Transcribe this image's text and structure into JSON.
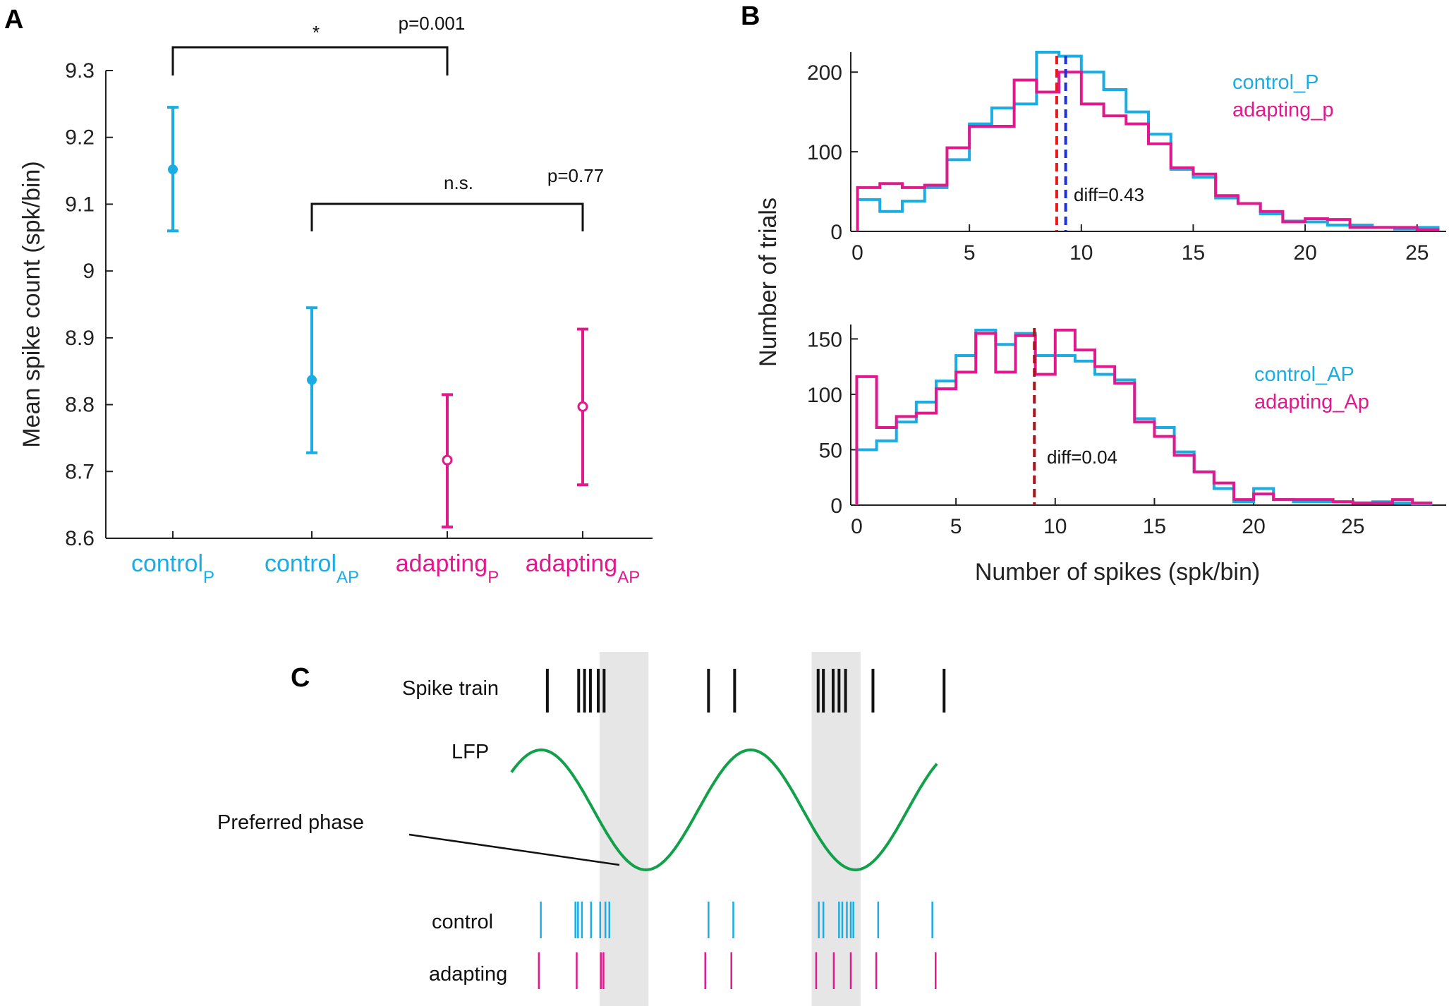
{
  "colors": {
    "control": "#1aace3",
    "adapting": "#e01a8c",
    "lfp": "#12a04a",
    "median_red": "#e41a1c",
    "median_blue": "#1f2fe0",
    "median_darkred": "#a8161c",
    "shade": "#e6e6e6",
    "axis": "#222222"
  },
  "panels": {
    "a": {
      "letter": "A"
    },
    "b": {
      "letter": "B"
    },
    "c": {
      "letter": "C"
    }
  },
  "chart_data": [
    {
      "id": "A",
      "type": "errorbar",
      "ylabel": "Mean spike count (spk/bin)",
      "ylim": [
        8.6,
        9.3
      ],
      "yticks": [
        "8.6",
        "8.7",
        "8.8",
        "8.9",
        "9",
        "9.1",
        "9.2",
        "9.3"
      ],
      "points": [
        {
          "main": "control",
          "sub": "P",
          "group": "control",
          "mean": 9.152,
          "lower": 9.06,
          "upper": 9.245,
          "filled": true
        },
        {
          "main": "control",
          "sub": "AP",
          "group": "control",
          "mean": 8.837,
          "lower": 8.728,
          "upper": 8.945,
          "filled": true
        },
        {
          "main": "adapting",
          "sub": "P",
          "group": "adapting",
          "mean": 8.717,
          "lower": 8.617,
          "upper": 8.815,
          "filled": false
        },
        {
          "main": "adapting",
          "sub": "AP",
          "group": "adapting",
          "mean": 8.797,
          "lower": 8.68,
          "upper": 8.913,
          "filled": false
        }
      ],
      "comparisons": [
        {
          "from": 0,
          "to": 2,
          "star": "*",
          "p": "p=0.001"
        },
        {
          "from": 1,
          "to": 3,
          "star": "n.s.",
          "p": "p=0.77"
        }
      ]
    },
    {
      "id": "B-top",
      "type": "histogram",
      "ylabel": "Number of trials",
      "xlabel": "",
      "xlim": [
        -0.3,
        26.3
      ],
      "ylim": [
        0,
        225
      ],
      "xticks": [
        0,
        5,
        10,
        15,
        20,
        25
      ],
      "yticks": [
        0,
        100,
        200
      ],
      "bin_edges": [
        0,
        1,
        2,
        3,
        4,
        5,
        6,
        7,
        8,
        9,
        10,
        11,
        12,
        13,
        14,
        15,
        16,
        17,
        18,
        19,
        20,
        21,
        22,
        23,
        24,
        25,
        26
      ],
      "series": [
        {
          "name": "control_P",
          "group": "control",
          "values": [
            40,
            25,
            38,
            55,
            90,
            135,
            155,
            160,
            225,
            220,
            200,
            178,
            150,
            122,
            78,
            68,
            42,
            35,
            22,
            13,
            12,
            8,
            8,
            5,
            3,
            5
          ]
        },
        {
          "name": "adapting_p",
          "group": "adapting",
          "values": [
            55,
            60,
            55,
            58,
            105,
            132,
            132,
            190,
            175,
            200,
            160,
            145,
            135,
            110,
            80,
            72,
            45,
            35,
            25,
            12,
            16,
            15,
            5,
            5,
            5,
            2
          ]
        }
      ],
      "medians": [
        {
          "x": 8.9,
          "color_key": "median_red"
        },
        {
          "x": 9.3,
          "color_key": "median_blue"
        }
      ],
      "annotation": "diff=0.43"
    },
    {
      "id": "B-bottom",
      "type": "histogram",
      "ylabel": "Number of trials",
      "xlabel": "Number of spikes (spk/bin)",
      "xlim": [
        -0.3,
        29.7
      ],
      "ylim": [
        0,
        163
      ],
      "xticks": [
        0,
        5,
        10,
        15,
        20,
        25
      ],
      "yticks": [
        0,
        50,
        100,
        150
      ],
      "bin_edges": [
        0,
        1,
        2,
        3,
        4,
        5,
        6,
        7,
        8,
        9,
        10,
        11,
        12,
        13,
        14,
        15,
        16,
        17,
        18,
        19,
        20,
        21,
        22,
        23,
        24,
        25,
        26,
        27,
        28,
        29
      ],
      "series": [
        {
          "name": "control_AP",
          "group": "control",
          "values": [
            50,
            58,
            75,
            93,
            112,
            135,
            158,
            145,
            155,
            135,
            135,
            130,
            118,
            113,
            78,
            70,
            48,
            30,
            15,
            3,
            15,
            5,
            3,
            3,
            3,
            2,
            3,
            2,
            1
          ]
        },
        {
          "name": "adapting_Ap",
          "group": "adapting",
          "values": [
            116,
            70,
            80,
            83,
            105,
            120,
            155,
            120,
            153,
            118,
            158,
            140,
            125,
            110,
            75,
            62,
            45,
            30,
            20,
            5,
            10,
            5,
            5,
            5,
            3,
            2,
            2,
            5,
            2
          ]
        }
      ],
      "medians": [
        {
          "x": 8.95,
          "color_key": "median_darkred"
        }
      ],
      "annotation": "diff=0.04"
    },
    {
      "id": "C",
      "type": "schematic",
      "labels": {
        "spike_train": "Spike train",
        "lfp": "LFP",
        "preferred_phase": "Preferred phase",
        "control": "control",
        "adapting": "adapting"
      },
      "time_range": [
        0,
        1000
      ],
      "shaded_intervals": [
        [
          135,
          210
        ],
        [
          460,
          535
        ]
      ],
      "spike_train": [
        55,
        103,
        112,
        121,
        133,
        142,
        302,
        342,
        470,
        478,
        493,
        502,
        512,
        554,
        663
      ],
      "control_spikes": [
        45,
        98,
        102,
        108,
        122,
        136,
        144,
        150,
        302,
        340,
        471,
        478,
        502,
        507,
        514,
        520,
        524,
        562,
        645
      ],
      "adapting_spikes": [
        42,
        100,
        137,
        141,
        297,
        337,
        467,
        494,
        520,
        559,
        650
      ],
      "lfp_wave": {
        "cycles": 1.785,
        "trough_phase_times": [
          206,
          527
        ]
      }
    }
  ]
}
